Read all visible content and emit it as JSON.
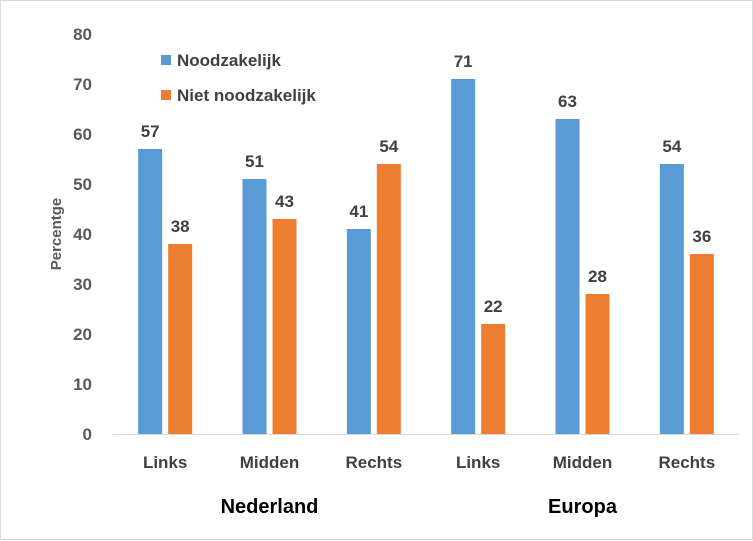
{
  "chart_data": {
    "type": "bar",
    "ylabel": "Percentge",
    "ylim": [
      0,
      80
    ],
    "yticks": [
      0,
      10,
      20,
      30,
      40,
      50,
      60,
      70,
      80
    ],
    "grid": false,
    "legend_position": "top-left",
    "groups": [
      {
        "label": "Nederland",
        "categories": [
          "Links",
          "Midden",
          "Rechts"
        ]
      },
      {
        "label": "Europa",
        "categories": [
          "Links",
          "Midden",
          "Rechts"
        ]
      }
    ],
    "categories": [
      "Links",
      "Midden",
      "Rechts",
      "Links",
      "Midden",
      "Rechts"
    ],
    "series": [
      {
        "name": "Noodzakelijk",
        "color": "#5b9bd5",
        "values": [
          57,
          51,
          41,
          71,
          63,
          54
        ]
      },
      {
        "name": "Niet noodzakelijk",
        "color": "#ed7d31",
        "values": [
          38,
          43,
          54,
          22,
          28,
          36
        ]
      }
    ]
  }
}
